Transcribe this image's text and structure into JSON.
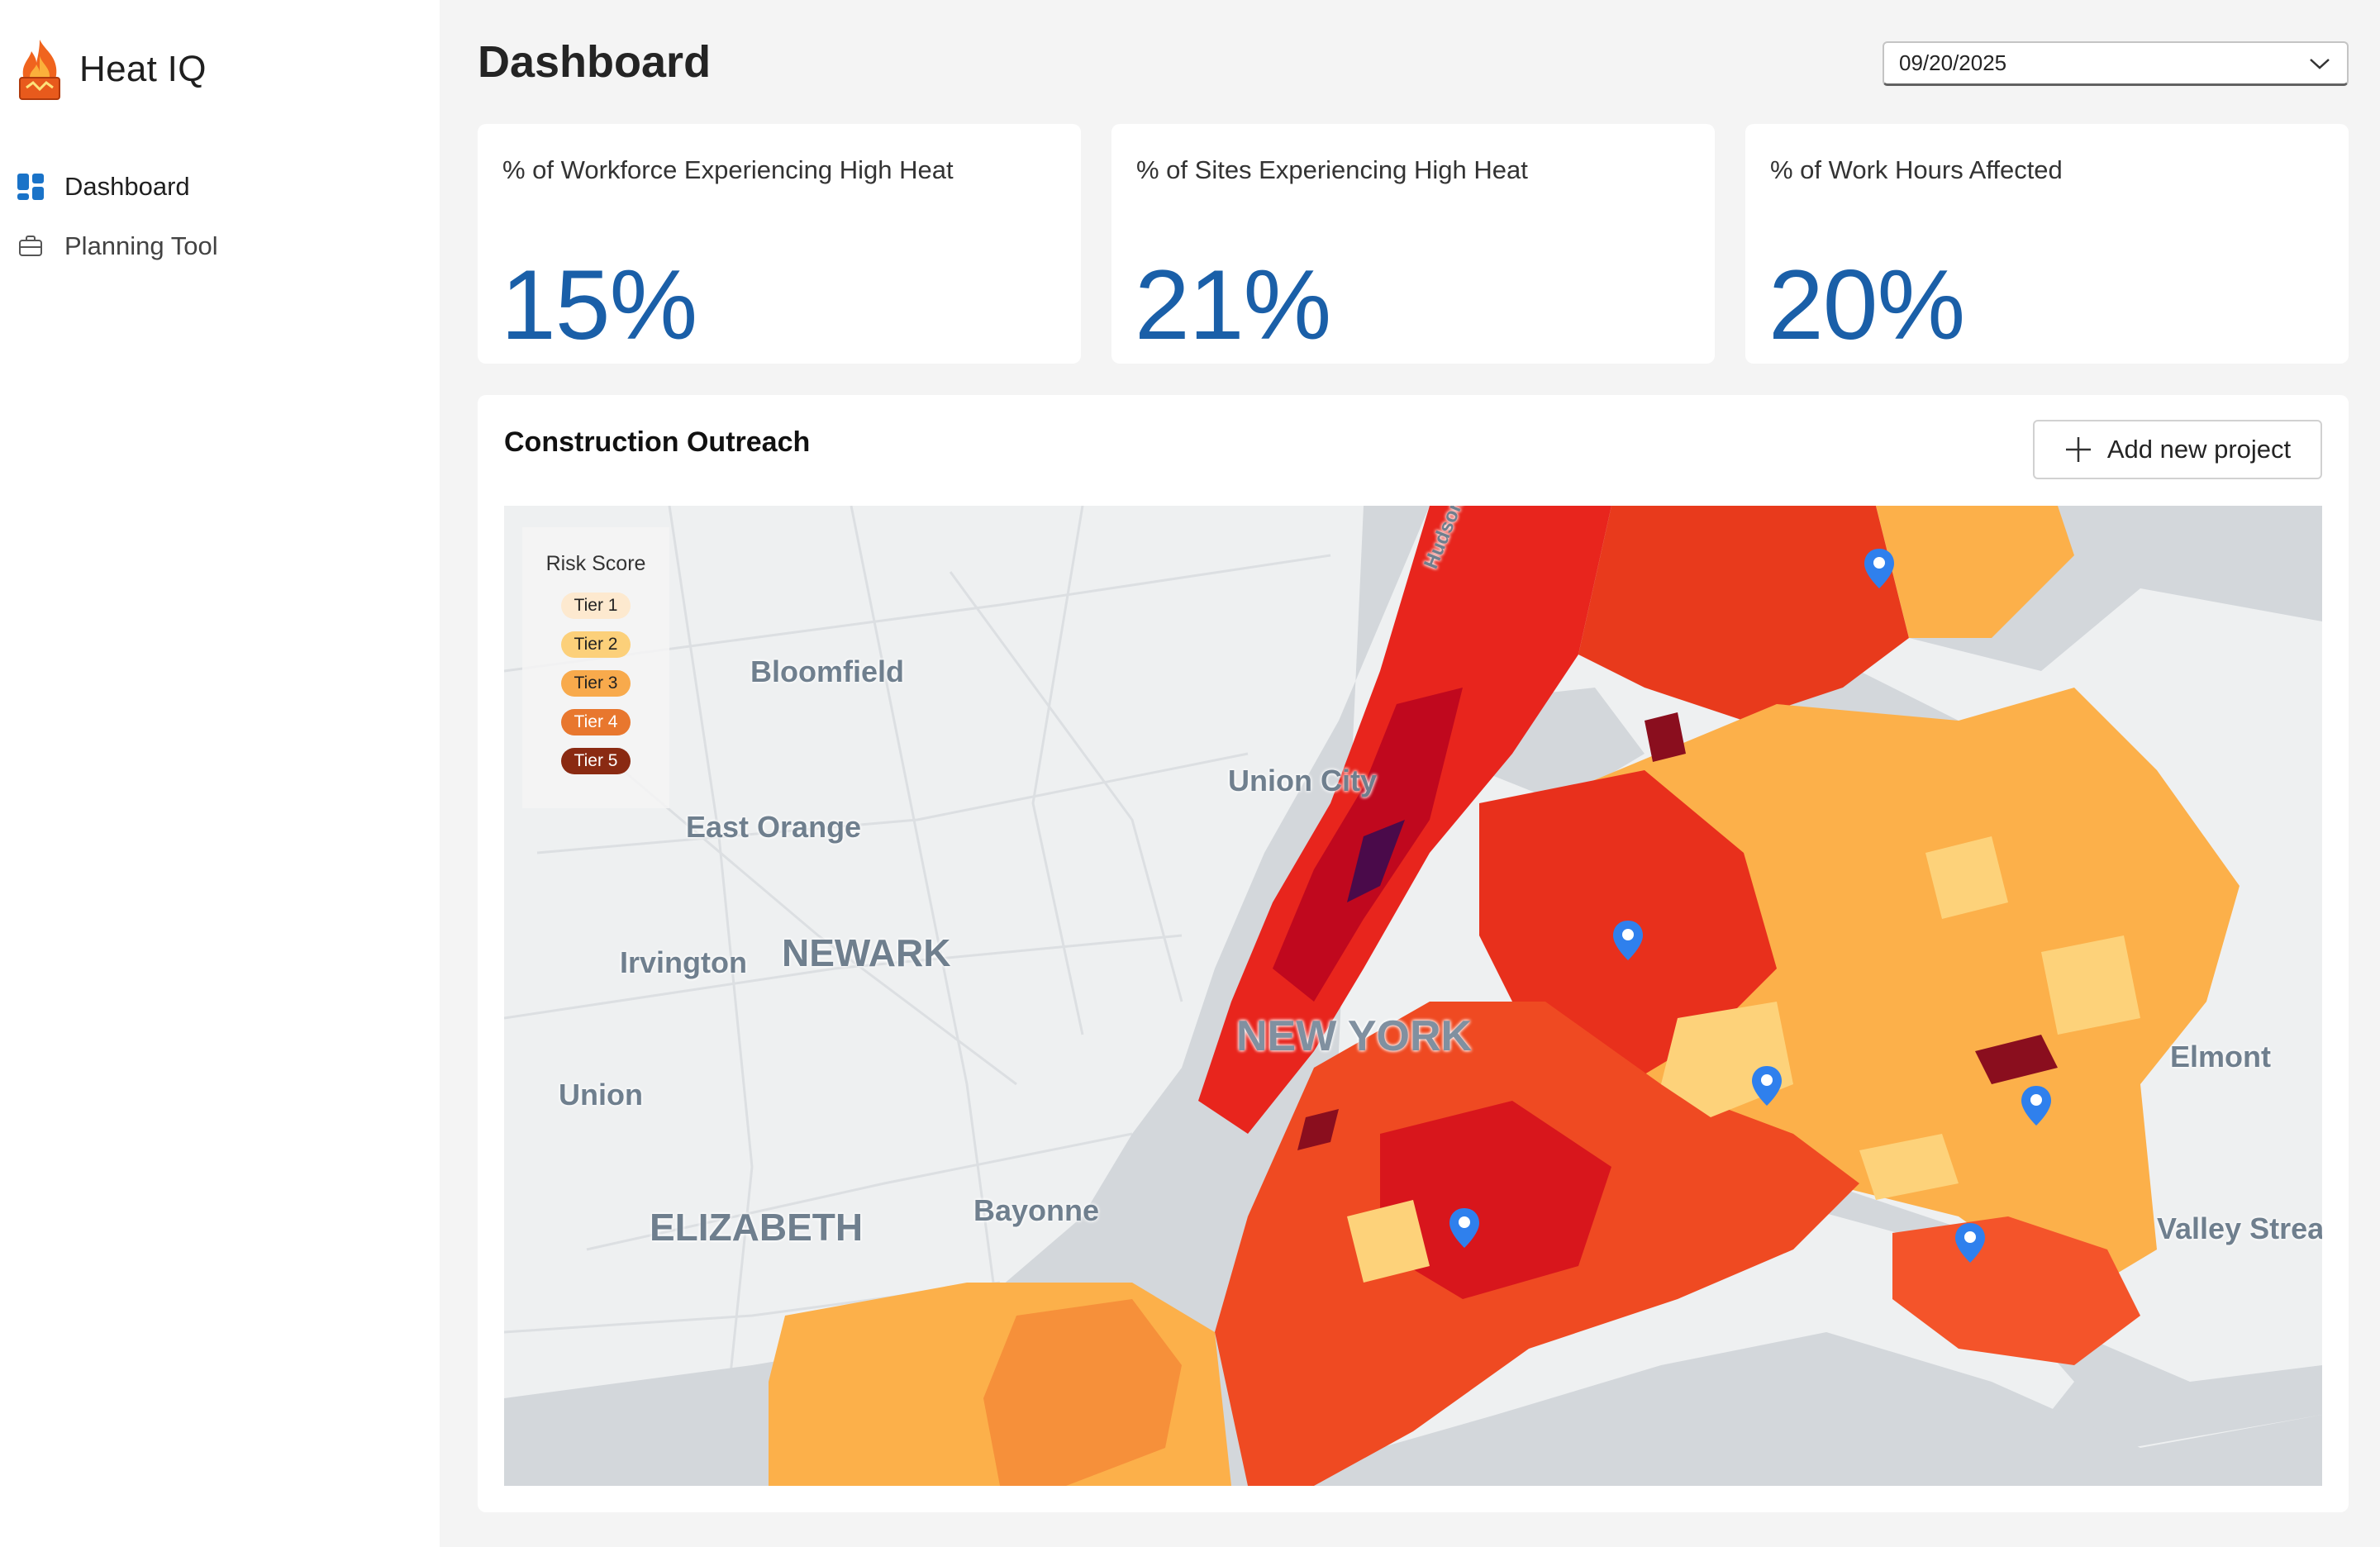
{
  "app": {
    "name": "Heat IQ",
    "logo_icon": "flame-icon"
  },
  "sidebar": {
    "items": [
      {
        "label": "Dashboard",
        "icon": "dashboard-grid-icon",
        "active": true
      },
      {
        "label": "Planning Tool",
        "icon": "briefcase-icon",
        "active": false
      }
    ]
  },
  "header": {
    "title": "Dashboard",
    "date_select": {
      "value": "09/20/2025",
      "icon": "chevron-down-icon"
    }
  },
  "kpis": [
    {
      "label": "% of Workforce Experiencing High Heat",
      "value": "15%"
    },
    {
      "label": "% of Sites Experiencing High Heat",
      "value": "21%"
    },
    {
      "label": "% of Work Hours Affected",
      "value": "20%"
    }
  ],
  "map_card": {
    "title": "Construction Outreach",
    "add_button": {
      "label": "Add new project",
      "icon": "plus-icon"
    },
    "legend": {
      "title": "Risk Score",
      "tiers": [
        {
          "label": "Tier 1",
          "color": "#fde9cf",
          "text_color": "#222222"
        },
        {
          "label": "Tier 2",
          "color": "#fcd07a",
          "text_color": "#222222"
        },
        {
          "label": "Tier 3",
          "color": "#f8aa4c",
          "text_color": "#222222"
        },
        {
          "label": "Tier 4",
          "color": "#e8772e",
          "text_color": "#ffffff"
        },
        {
          "label": "Tier 5",
          "color": "#8a2a12",
          "text_color": "#ffffff"
        }
      ]
    },
    "place_labels": {
      "bloomfield": "Bloomfield",
      "east_orange": "East Orange",
      "union_city": "Union City",
      "irvington": "Irvington",
      "newark": "NEWARK",
      "new_york": "NEW YORK",
      "union": "Union",
      "elizabeth": "ELIZABETH",
      "bayonne": "Bayonne",
      "elmont": "Elmont",
      "valley_stream": "Valley Stream",
      "hudson_river": "Hudson River"
    },
    "project_pins": 6,
    "pin_color": "#2f80ed"
  }
}
